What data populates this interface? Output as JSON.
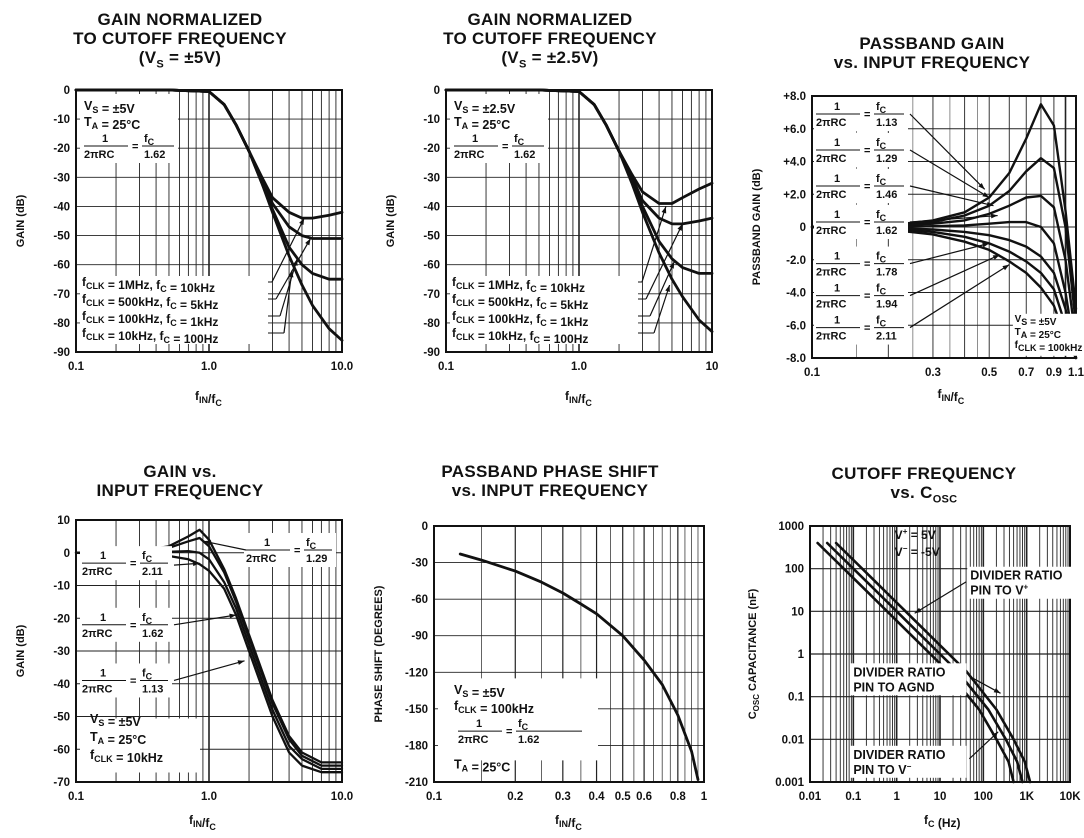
{
  "charts": [
    {
      "id": "p1",
      "title_lines": [
        "GAIN NORMALIZED",
        "TO CUTOFF FREQUENCY",
        "(V_S = ±5V)"
      ],
      "xlabel": "f_IN/f_C",
      "ylabel": "GAIN (dB)",
      "xticks": [
        {
          "v": 0.1,
          "t": "0.1"
        },
        {
          "v": 1,
          "t": "1.0"
        },
        {
          "v": 10,
          "t": "10.0"
        }
      ],
      "yticks": [
        0,
        -10,
        -20,
        -30,
        -40,
        -50,
        -60,
        -70,
        -80,
        -90
      ],
      "annotation": [
        "V_S = ±5V",
        "T_A = 25°C",
        "1/2πRC = f_C/1.62"
      ],
      "legend": [
        "f_CLK = 1MHz, f_C = 10kHz",
        "f_CLK = 500kHz, f_C = 5kHz",
        "f_CLK = 100kHz, f_C = 1kHz",
        "f_CLK = 10kHz, f_C = 100Hz"
      ]
    },
    {
      "id": "p2",
      "title_lines": [
        "GAIN NORMALIZED",
        "TO CUTOFF FREQUENCY",
        "(V_S = ±2.5V)"
      ],
      "xlabel": "f_IN/f_C",
      "ylabel": "GAIN (dB)",
      "xticks": [
        {
          "v": 0.1,
          "t": "0.1"
        },
        {
          "v": 1,
          "t": "1.0"
        },
        {
          "v": 10,
          "t": "10"
        }
      ],
      "yticks": [
        0,
        -10,
        -20,
        -30,
        -40,
        -50,
        -60,
        -70,
        -80,
        -90
      ],
      "annotation": [
        "V_S = ±2.5V",
        "T_A = 25°C",
        "1/2πRC = f_C/1.62"
      ],
      "legend": [
        "f_CLK = 1MHz, f_C = 10kHz",
        "f_CLK = 500kHz, f_C = 5kHz",
        "f_CLK = 100kHz, f_C = 1kHz",
        "f_CLK = 10kHz, f_C = 100Hz"
      ]
    },
    {
      "id": "p3",
      "title_lines": [
        "PASSBAND GAIN",
        "vs. INPUT FREQUENCY"
      ],
      "xlabel": "f_IN/f_C",
      "ylabel": "PASSBAND GAIN (dB)",
      "xticks": [
        {
          "v": 0.1,
          "t": "0.1"
        },
        {
          "v": 0.3,
          "t": "0.3"
        },
        {
          "v": 0.5,
          "t": "0.5"
        },
        {
          "v": 0.7,
          "t": "0.7"
        },
        {
          "v": 0.9,
          "t": "0.9"
        },
        {
          "v": 1.1,
          "t": "1.1"
        }
      ],
      "yticks": [
        "+8.0",
        "+6.0",
        "+4.0",
        "+2.0",
        "0",
        "-2.0",
        "-4.0",
        "-6.0",
        "-8.0"
      ],
      "ratio_labels": [
        "1.13",
        "1.29",
        "1.46",
        "1.62",
        "1.78",
        "1.94",
        "2.11"
      ],
      "annotation": [
        "V_S = ±5V",
        "T_A = 25°C",
        "f_CLK = 100kHz"
      ]
    },
    {
      "id": "p4",
      "title_lines": [
        "GAIN vs.",
        "INPUT FREQUENCY"
      ],
      "xlabel": "f_IN/f_C",
      "ylabel": "GAIN (dB)",
      "xticks": [
        {
          "v": 0.1,
          "t": "0.1"
        },
        {
          "v": 1,
          "t": "1.0"
        },
        {
          "v": 10,
          "t": "10.0"
        }
      ],
      "yticks": [
        10,
        0,
        -10,
        -20,
        -30,
        -40,
        -50,
        -60,
        -70
      ],
      "ratio_labels": [
        "1.29",
        "2.11",
        "1.62",
        "1.13"
      ],
      "annotation": [
        "V_S = ±5V",
        "T_A = 25°C",
        "f_CLK = 10kHz"
      ]
    },
    {
      "id": "p5",
      "title_lines": [
        "PASSBAND PHASE SHIFT",
        "vs. INPUT FREQUENCY"
      ],
      "xlabel": "f_IN/f_C",
      "ylabel": "PHASE SHIFT (DEGREES)",
      "xticks": [
        {
          "v": 0.2,
          "t": "0.2"
        },
        {
          "v": 0.3,
          "t": "0.3"
        },
        {
          "v": 0.4,
          "t": "0.4"
        },
        {
          "v": 0.5,
          "t": "0.5"
        },
        {
          "v": 0.6,
          "t": "0.6"
        },
        {
          "v": 0.8,
          "t": "0.8"
        },
        {
          "v": 1,
          "t": "1"
        }
      ],
      "yticks": [
        0,
        -30,
        -60,
        -90,
        -120,
        -150,
        -180,
        -210
      ],
      "annotation": [
        "V_S = ±5V",
        "f_CLK = 100kHz",
        "1/2πRC = f_C/1.62",
        "T_A = 25°C"
      ]
    },
    {
      "id": "p6",
      "title_lines": [
        "CUTOFF FREQUENCY",
        "vs. C_OSC"
      ],
      "xlabel": "f_C (Hz)",
      "ylabel": "C_OSC CAPACITANCE (nF)",
      "xticks": [
        {
          "v": 0.01,
          "t": "0.01"
        },
        {
          "v": 0.1,
          "t": "0.1"
        },
        {
          "v": 1,
          "t": "1"
        },
        {
          "v": 10,
          "t": "10"
        },
        {
          "v": 100,
          "t": "100"
        },
        {
          "v": 1000,
          "t": "1K"
        },
        {
          "v": 10000,
          "t": "10K"
        }
      ],
      "yticks": [
        {
          "v": 1000,
          "t": "1000"
        },
        {
          "v": 100,
          "t": "100"
        },
        {
          "v": 10,
          "t": "10"
        },
        {
          "v": 1,
          "t": "1"
        },
        {
          "v": 0.1,
          "t": "0.1"
        },
        {
          "v": 0.01,
          "t": "0.01"
        },
        {
          "v": 0.001,
          "t": "0.001"
        }
      ],
      "annotation": [
        "V+ = 5V",
        "V- = -5V"
      ],
      "labels": [
        "DIVIDER RATIO PIN TO V+",
        "DIVIDER RATIO PIN TO AGND",
        "DIVIDER RATIO PIN TO V-"
      ]
    }
  ],
  "chart_data": [
    {
      "type": "line",
      "title": "GAIN NORMALIZED TO CUTOFF FREQUENCY (V_S = ±5V)",
      "xlabel": "f_IN/f_C",
      "ylabel": "GAIN (dB)",
      "xscale": "log",
      "xlim": [
        0.1,
        10
      ],
      "ylim": [
        -90,
        0
      ],
      "grid": true,
      "series": [
        {
          "name": "f_CLK = 1MHz, f_C = 10kHz",
          "x": [
            0.1,
            0.5,
            1,
            1.3,
            1.6,
            2,
            2.5,
            3,
            4,
            5,
            6,
            8,
            10
          ],
          "y": [
            0,
            0,
            -0.5,
            -5,
            -12,
            -21,
            -30,
            -37,
            -42,
            -44,
            -44,
            -43,
            -42
          ]
        },
        {
          "name": "f_CLK = 500kHz, f_C = 5kHz",
          "x": [
            0.1,
            0.5,
            1,
            1.3,
            1.6,
            2,
            2.5,
            3,
            4,
            5,
            6,
            8,
            10
          ],
          "y": [
            0,
            0,
            -0.5,
            -5,
            -12,
            -21,
            -31,
            -39,
            -47,
            -50,
            -51,
            -51,
            -51
          ]
        },
        {
          "name": "f_CLK = 100kHz, f_C = 1kHz",
          "x": [
            0.1,
            0.5,
            1,
            1.3,
            1.6,
            2,
            2.5,
            3,
            4,
            5,
            6,
            8,
            10
          ],
          "y": [
            0,
            0,
            -0.5,
            -5,
            -12,
            -21,
            -32,
            -41,
            -54,
            -60,
            -63,
            -65,
            -65
          ]
        },
        {
          "name": "f_CLK = 10kHz, f_C = 100Hz",
          "x": [
            0.1,
            0.5,
            1,
            1.3,
            1.6,
            2,
            2.5,
            3,
            4,
            5,
            6,
            8,
            10
          ],
          "y": [
            0,
            0,
            -0.5,
            -5,
            -12,
            -21,
            -32,
            -42,
            -57,
            -67,
            -74,
            -82,
            -86
          ]
        }
      ]
    },
    {
      "type": "line",
      "title": "GAIN NORMALIZED TO CUTOFF FREQUENCY (V_S = ±2.5V)",
      "xlabel": "f_IN/f_C",
      "ylabel": "GAIN (dB)",
      "xscale": "log",
      "xlim": [
        0.1,
        10
      ],
      "ylim": [
        -90,
        0
      ],
      "grid": true,
      "series": [
        {
          "name": "f_CLK = 1MHz, f_C = 10kHz",
          "x": [
            0.1,
            0.5,
            1,
            1.3,
            1.6,
            2,
            2.5,
            3,
            4,
            5,
            6,
            8,
            10
          ],
          "y": [
            0,
            0,
            -0.5,
            -5,
            -12,
            -21,
            -29,
            -35,
            -39,
            -39,
            -37,
            -34,
            -32
          ]
        },
        {
          "name": "f_CLK = 500kHz, f_C = 5kHz",
          "x": [
            0.1,
            0.5,
            1,
            1.3,
            1.6,
            2,
            2.5,
            3,
            4,
            5,
            6,
            8,
            10
          ],
          "y": [
            0,
            0,
            -0.5,
            -5,
            -12,
            -21,
            -30,
            -38,
            -44,
            -46,
            -46,
            -45,
            -44
          ]
        },
        {
          "name": "f_CLK = 100kHz, f_C = 1kHz",
          "x": [
            0.1,
            0.5,
            1,
            1.3,
            1.6,
            2,
            2.5,
            3,
            4,
            5,
            6,
            8,
            10
          ],
          "y": [
            0,
            0,
            -0.5,
            -5,
            -12,
            -21,
            -31,
            -40,
            -52,
            -58,
            -61,
            -63,
            -63
          ]
        },
        {
          "name": "f_CLK = 10kHz, f_C = 100Hz",
          "x": [
            0.1,
            0.5,
            1,
            1.3,
            1.6,
            2,
            2.5,
            3,
            4,
            5,
            6,
            8,
            10
          ],
          "y": [
            0,
            0,
            -0.5,
            -5,
            -12,
            -21,
            -32,
            -42,
            -56,
            -65,
            -71,
            -79,
            -83
          ]
        }
      ]
    },
    {
      "type": "line",
      "title": "PASSBAND GAIN vs. INPUT FREQUENCY",
      "xlabel": "f_IN/f_C",
      "ylabel": "PASSBAND GAIN (dB)",
      "xscale": "log",
      "xlim": [
        0.1,
        1.1
      ],
      "ylim": [
        -8,
        8
      ],
      "grid": true,
      "series": [
        {
          "name": "1/2πRC = f_C/1.13",
          "x": [
            0.1,
            0.2,
            0.3,
            0.4,
            0.5,
            0.6,
            0.7,
            0.8,
            0.9,
            1,
            1.1
          ],
          "y": [
            0,
            0.1,
            0.4,
            0.9,
            1.8,
            3.3,
            5.4,
            7.5,
            6.2,
            1,
            -5
          ]
        },
        {
          "name": "1/2πRC = f_C/1.29",
          "x": [
            0.1,
            0.2,
            0.3,
            0.4,
            0.5,
            0.6,
            0.7,
            0.8,
            0.9,
            1,
            1.1
          ],
          "y": [
            0,
            0.08,
            0.3,
            0.7,
            1.3,
            2.2,
            3.4,
            4.2,
            3.6,
            0,
            -6
          ]
        },
        {
          "name": "1/2πRC = f_C/1.46",
          "x": [
            0.1,
            0.2,
            0.3,
            0.4,
            0.5,
            0.6,
            0.7,
            0.8,
            0.9,
            1,
            1.1
          ],
          "y": [
            0,
            0.05,
            0.2,
            0.4,
            0.8,
            1.3,
            1.8,
            1.9,
            1.2,
            -2,
            -7
          ]
        },
        {
          "name": "1/2πRC = f_C/1.62",
          "x": [
            0.1,
            0.2,
            0.3,
            0.4,
            0.5,
            0.6,
            0.7,
            0.8,
            0.9,
            1,
            1.1
          ],
          "y": [
            0,
            0,
            0.05,
            0.1,
            0.2,
            0.3,
            0.3,
            0,
            -1,
            -4,
            -8
          ]
        },
        {
          "name": "1/2πRC = f_C/1.78",
          "x": [
            0.1,
            0.2,
            0.3,
            0.4,
            0.5,
            0.6,
            0.7,
            0.8,
            0.9,
            1,
            1.1
          ],
          "y": [
            0,
            -0.05,
            -0.15,
            -0.3,
            -0.5,
            -0.8,
            -1.2,
            -1.8,
            -2.8,
            -5,
            -8
          ]
        },
        {
          "name": "1/2πRC = f_C/1.94",
          "x": [
            0.1,
            0.2,
            0.3,
            0.4,
            0.5,
            0.6,
            0.7,
            0.8,
            0.9,
            1,
            1.1
          ],
          "y": [
            0,
            -0.1,
            -0.3,
            -0.6,
            -1,
            -1.5,
            -2.1,
            -2.8,
            -3.8,
            -6,
            -8
          ]
        },
        {
          "name": "1/2πRC = f_C/2.11",
          "x": [
            0.1,
            0.2,
            0.3,
            0.4,
            0.5,
            0.6,
            0.7,
            0.8,
            0.9,
            1,
            1.1
          ],
          "y": [
            0,
            -0.15,
            -0.45,
            -0.9,
            -1.4,
            -2.1,
            -2.8,
            -3.7,
            -4.8,
            -6.8,
            -8
          ]
        }
      ]
    },
    {
      "type": "line",
      "title": "GAIN vs. INPUT FREQUENCY",
      "xlabel": "f_IN/f_C",
      "ylabel": "GAIN (dB)",
      "xscale": "log",
      "xlim": [
        0.1,
        10
      ],
      "ylim": [
        -70,
        10
      ],
      "grid": true,
      "series": [
        {
          "name": "1/2πRC = f_C/1.13",
          "x": [
            0.1,
            0.3,
            0.5,
            0.7,
            0.85,
            1,
            1.3,
            1.6,
            2,
            2.5,
            3,
            4,
            5,
            7,
            10
          ],
          "y": [
            0,
            0.5,
            2,
            5,
            7,
            4,
            -5,
            -14,
            -25,
            -36,
            -45,
            -56,
            -61,
            -64,
            -64
          ]
        },
        {
          "name": "1/2πRC = f_C/1.29",
          "x": [
            0.1,
            0.3,
            0.5,
            0.7,
            0.85,
            1,
            1.3,
            1.6,
            2,
            2.5,
            3,
            4,
            5,
            7,
            10
          ],
          "y": [
            0,
            0.4,
            1.5,
            3.5,
            4.5,
            2,
            -6,
            -15,
            -26,
            -37,
            -46,
            -57,
            -62,
            -65,
            -65
          ]
        },
        {
          "name": "1/2πRC = f_C/1.62",
          "x": [
            0.1,
            0.3,
            0.5,
            0.7,
            0.85,
            1,
            1.3,
            1.6,
            2,
            2.5,
            3,
            4,
            5,
            7,
            10
          ],
          "y": [
            0,
            0.1,
            0.3,
            0.5,
            0,
            -2,
            -9,
            -17,
            -28,
            -39,
            -48,
            -59,
            -63,
            -66,
            -66
          ]
        },
        {
          "name": "1/2πRC = f_C/2.11",
          "x": [
            0.1,
            0.3,
            0.5,
            0.7,
            0.85,
            1,
            1.3,
            1.6,
            2,
            2.5,
            3,
            4,
            5,
            7,
            10
          ],
          "y": [
            0,
            -0.3,
            -1,
            -2,
            -3.5,
            -5.5,
            -11,
            -19,
            -30,
            -41,
            -50,
            -61,
            -65,
            -67,
            -67
          ]
        }
      ]
    },
    {
      "type": "line",
      "title": "PASSBAND PHASE SHIFT vs. INPUT FREQUENCY",
      "xlabel": "f_IN/f_C",
      "ylabel": "PHASE SHIFT (DEGREES)",
      "xscale": "log",
      "xlim": [
        0.1,
        1
      ],
      "ylim": [
        -210,
        0
      ],
      "grid": true,
      "series": [
        {
          "name": "",
          "x": [
            0.125,
            0.15,
            0.2,
            0.25,
            0.3,
            0.35,
            0.4,
            0.5,
            0.6,
            0.7,
            0.8,
            0.9,
            0.95
          ],
          "y": [
            -23,
            -28,
            -37,
            -46,
            -55,
            -64,
            -72,
            -90,
            -110,
            -130,
            -155,
            -185,
            -208
          ]
        }
      ]
    },
    {
      "type": "line",
      "title": "CUTOFF FREQUENCY vs. C_OSC",
      "xlabel": "f_C (Hz)",
      "ylabel": "C_OSC CAPACITANCE (nF)",
      "xscale": "log",
      "yscale": "log",
      "xlim": [
        0.01,
        10000
      ],
      "ylim": [
        0.001,
        1000
      ],
      "grid": true,
      "series": [
        {
          "name": "DIVIDER RATIO PIN TO V+",
          "x": [
            0.04,
            0.4,
            4,
            40,
            200,
            500,
            900,
            1200
          ],
          "y": [
            400,
            40,
            4,
            0.4,
            0.05,
            0.01,
            0.003,
            0.001
          ]
        },
        {
          "name": "DIVIDER RATIO PIN TO AGND",
          "x": [
            0.025,
            0.25,
            2.5,
            25,
            130,
            330,
            600,
            800
          ],
          "y": [
            400,
            40,
            4,
            0.4,
            0.05,
            0.01,
            0.003,
            0.001
          ]
        },
        {
          "name": "DIVIDER RATIO PIN TO V-",
          "x": [
            0.015,
            0.15,
            1.5,
            15,
            80,
            200,
            380,
            500
          ],
          "y": [
            400,
            40,
            4,
            0.4,
            0.05,
            0.01,
            0.003,
            0.001
          ]
        }
      ]
    }
  ]
}
